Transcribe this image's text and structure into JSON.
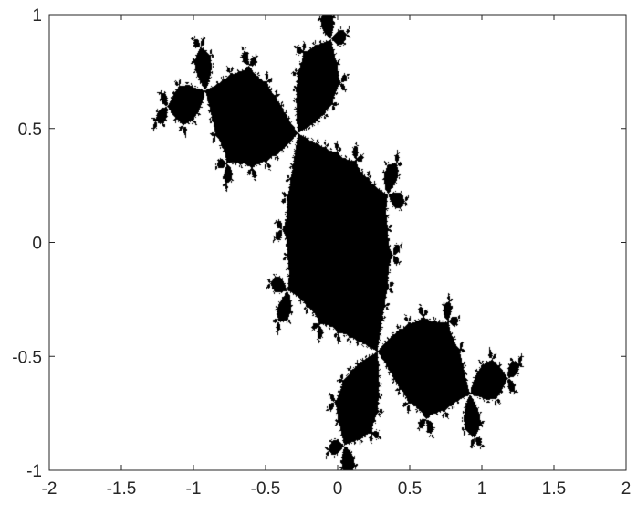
{
  "chart_data": {
    "type": "scatter",
    "title": "",
    "xlabel": "",
    "ylabel": "",
    "xlim": [
      -2,
      2
    ],
    "ylim": [
      -1,
      1
    ],
    "xticks": [
      -2,
      -1.5,
      -1,
      -0.5,
      0,
      0.5,
      1,
      1.5,
      2
    ],
    "xtick_labels": [
      "-2",
      "-1.5",
      "-1",
      "-0.5",
      "0",
      "0.5",
      "1",
      "1.5",
      "2"
    ],
    "yticks": [
      -1,
      -0.5,
      0,
      0.5,
      1
    ],
    "ytick_labels": [
      "-1",
      "-0.5",
      "0",
      "0.5",
      "1"
    ],
    "grid": false,
    "legend": "none",
    "fill_color": "#000000",
    "axis_color": "#262626",
    "series": [
      {
        "kind": "filled-julia-set",
        "c_re": -0.122,
        "c_im": 0.745,
        "max_iter": 200
      }
    ]
  }
}
